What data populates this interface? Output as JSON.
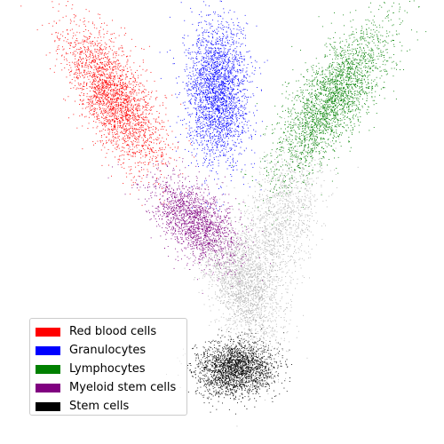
{
  "chart_data": {
    "type": "scatter",
    "title": "",
    "xlabel": "",
    "ylabel": "",
    "axes_visible": false,
    "grid": false,
    "legend_position": "bottom-left",
    "point_color_background": "#b4b4b4",
    "series": [
      {
        "name": "Red blood cells",
        "color": "#ff0000"
      },
      {
        "name": "Granulocytes",
        "color": "#0000ff"
      },
      {
        "name": "Lymphocytes",
        "color": "#008000"
      },
      {
        "name": "Myeloid stem cells",
        "color": "#800080"
      },
      {
        "name": "Stem cells",
        "color": "#000000"
      }
    ]
  }
}
